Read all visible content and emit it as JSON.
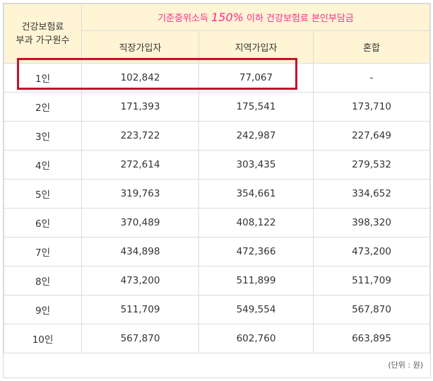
{
  "header": {
    "household_label_line1": "건강보험료",
    "household_label_line2": "부과 가구원수",
    "group_title_prefix": "기준중위소득 ",
    "group_title_percent": "150%",
    "group_title_suffix": " 이하 건강보험료 본인부담금",
    "col_employee": "직장가입자",
    "col_regional": "지역가입자",
    "col_mixed": "혼합"
  },
  "rows": [
    {
      "size": "1인",
      "employee": "102,842",
      "regional": "77,067",
      "mixed": "-"
    },
    {
      "size": "2인",
      "employee": "171,393",
      "regional": "175,541",
      "mixed": "173,710"
    },
    {
      "size": "3인",
      "employee": "223,722",
      "regional": "242,987",
      "mixed": "227,649"
    },
    {
      "size": "4인",
      "employee": "272,614",
      "regional": "303,435",
      "mixed": "279,532"
    },
    {
      "size": "5인",
      "employee": "319,763",
      "regional": "354,661",
      "mixed": "334,652"
    },
    {
      "size": "6인",
      "employee": "370,489",
      "regional": "408,122",
      "mixed": "398,320"
    },
    {
      "size": "7인",
      "employee": "434,898",
      "regional": "472,366",
      "mixed": "473,200"
    },
    {
      "size": "8인",
      "employee": "473,200",
      "regional": "511,899",
      "mixed": "511,709"
    },
    {
      "size": "9인",
      "employee": "511,709",
      "regional": "549,554",
      "mixed": "567,870"
    },
    {
      "size": "10인",
      "employee": "567,870",
      "regional": "602,760",
      "mixed": "663,895"
    }
  ],
  "footer": {
    "unit": "(단위 : 원)"
  },
  "colors": {
    "header_bg": "#fff4d4",
    "title_pink": "#ff2a8f",
    "highlight_red": "#c8102e"
  }
}
